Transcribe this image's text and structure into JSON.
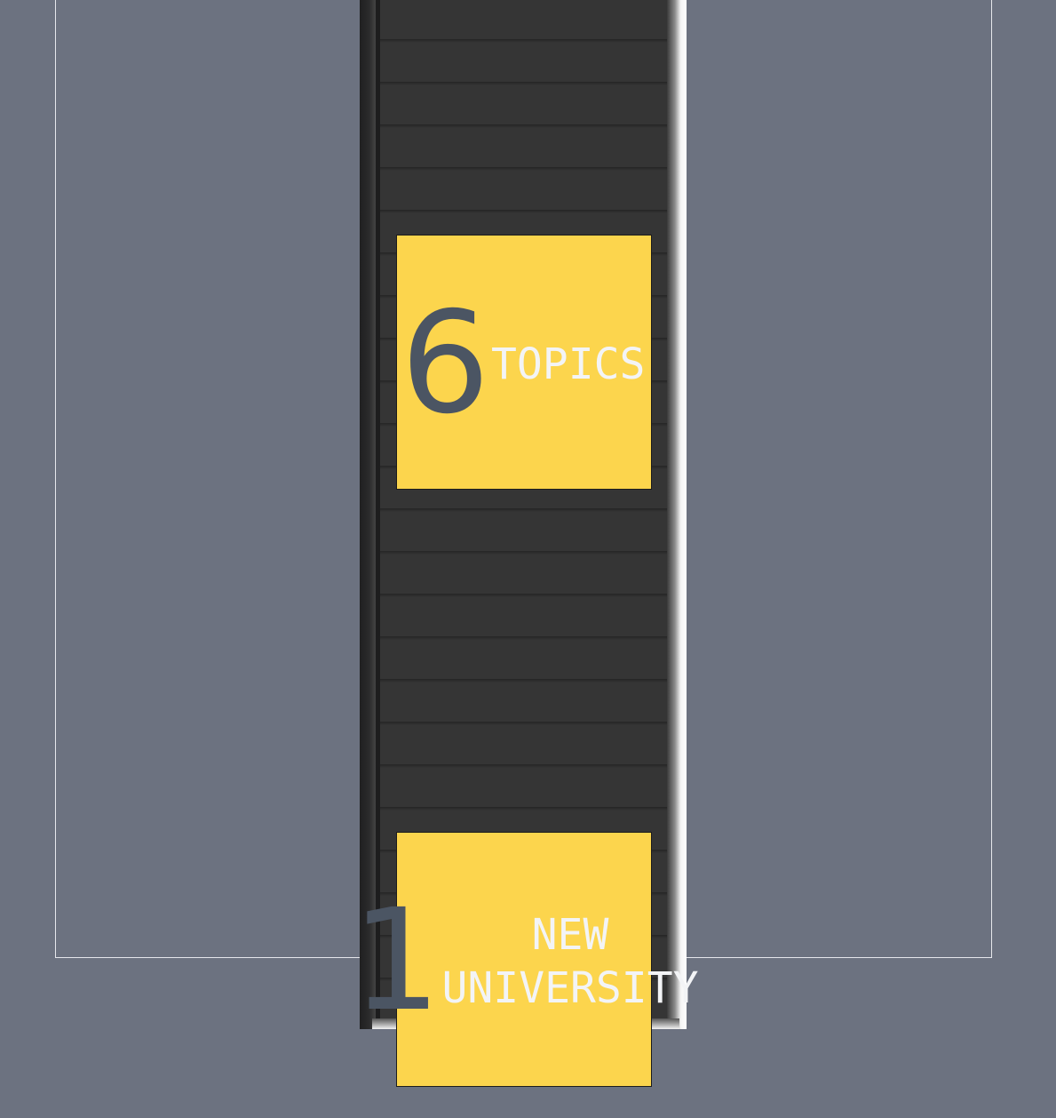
{
  "stats": [
    {
      "number": "6",
      "label_lines": [
        "TOPICS"
      ]
    },
    {
      "number": "1",
      "label_lines": [
        "NEW",
        "UNIVERSITY"
      ]
    }
  ],
  "colors": {
    "background": "#6c7280",
    "card": "#fcd54d",
    "number": "#4b5563",
    "label": "#f3f4f6",
    "shelf": "#2a2a2b"
  }
}
